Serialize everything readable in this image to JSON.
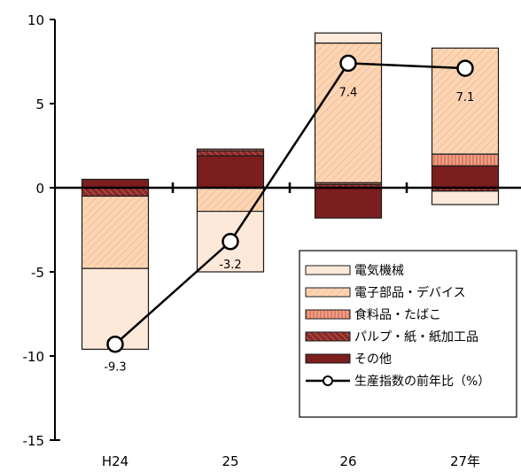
{
  "chart_data": {
    "type": "bar",
    "subtype": "stacked bar with line",
    "categories": [
      "H24",
      "25",
      "26",
      "27年"
    ],
    "ylim": [
      -15,
      10
    ],
    "yticks": [
      10,
      5,
      0,
      -5,
      -10,
      -15
    ],
    "grid": false,
    "legend_position": "bottom-right",
    "colors": {
      "electric": "#fde9d9",
      "electronic": "#fcd5b4",
      "food": "#e8947a",
      "pulp": "#8b2a2a",
      "other": "#7a1e1e",
      "line": "#000000",
      "marker_fill": "#ffffff",
      "border": "#1a1a1a"
    },
    "series": [
      {
        "key": "electric",
        "name": "電気機械",
        "values": [
          -4.8,
          -3.6,
          0.6,
          -0.8
        ]
      },
      {
        "key": "electronic",
        "name": "電子部品・デバイス",
        "values": [
          -4.3,
          -1.4,
          8.3,
          6.3
        ]
      },
      {
        "key": "food",
        "name": "食料品・たばこ",
        "values": [
          0.0,
          0.1,
          0.1,
          0.7
        ]
      },
      {
        "key": "pulp",
        "name": "パルプ・紙・紙加工品",
        "values": [
          -0.5,
          0.3,
          0.2,
          -0.2
        ]
      },
      {
        "key": "other",
        "name": "その他",
        "values": [
          0.5,
          1.9,
          -1.8,
          1.3
        ]
      }
    ],
    "line": {
      "name": "生産指数の前年比（%）",
      "values": [
        -9.3,
        -3.2,
        7.4,
        7.1
      ]
    },
    "data_labels": [
      "-9.3",
      "-3.2",
      "7.4",
      "7.1"
    ]
  }
}
